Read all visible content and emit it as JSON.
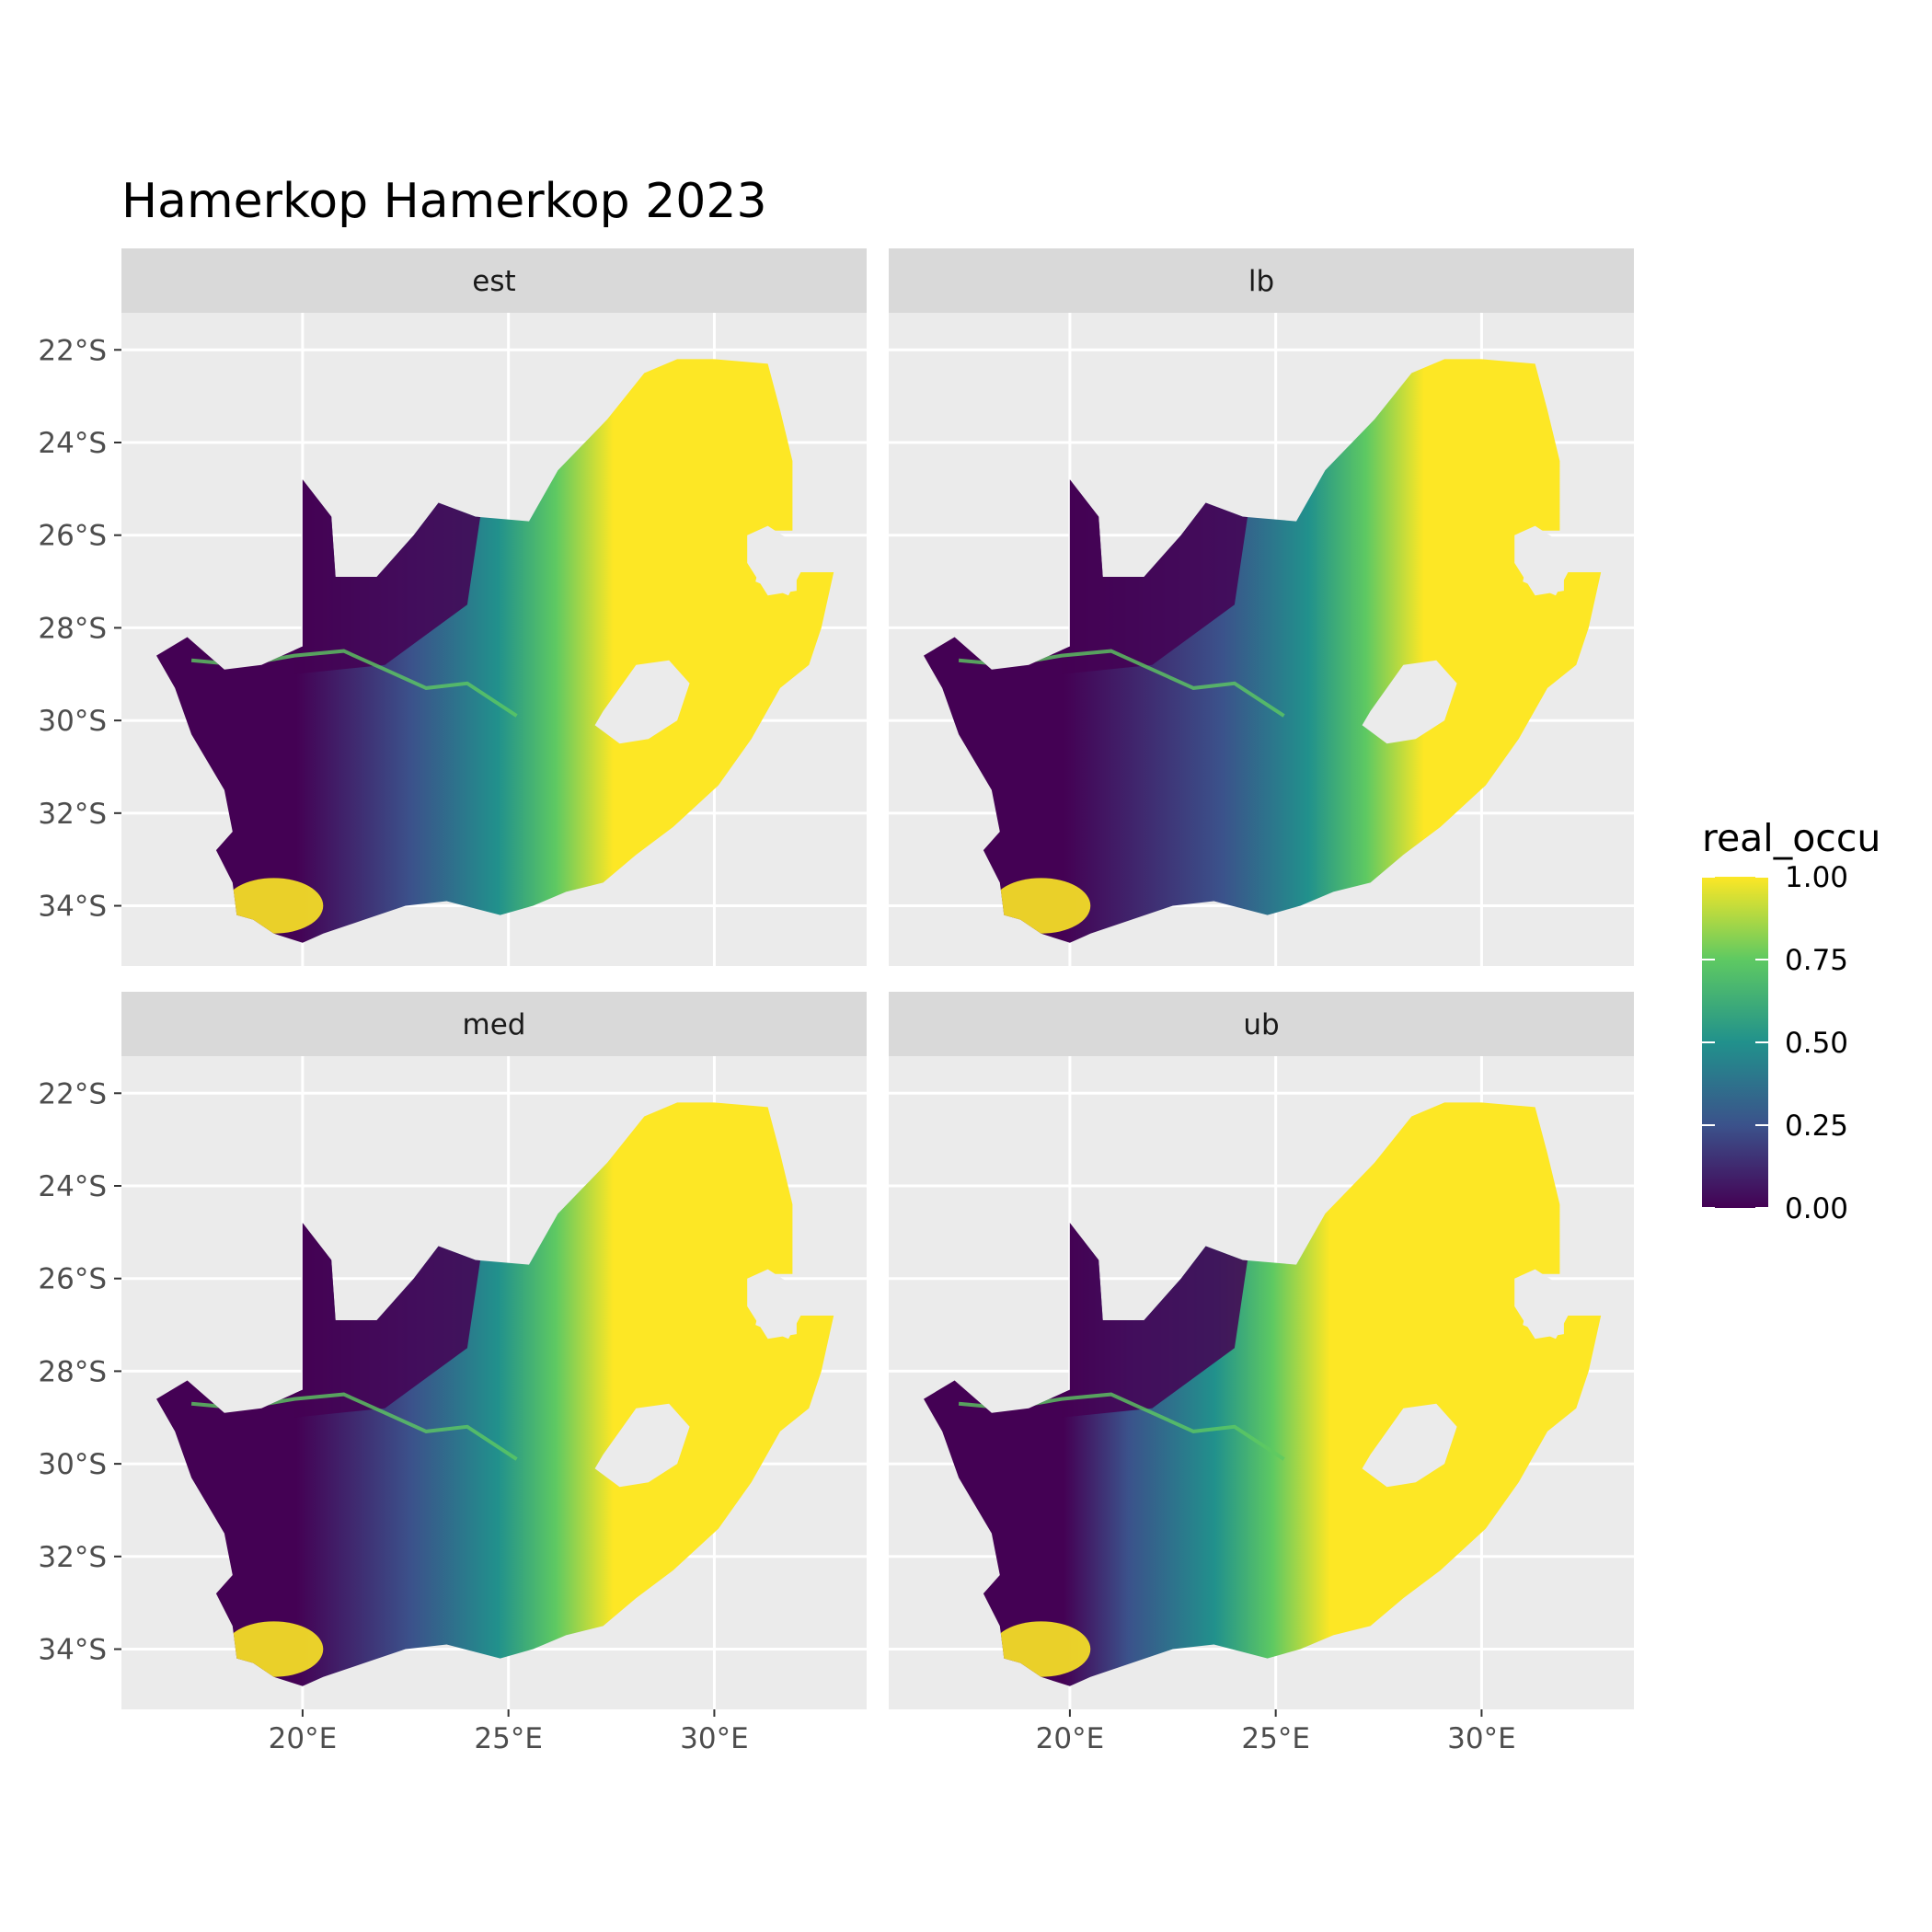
{
  "title": "Hamerkop Hamerkop 2023",
  "colors": {
    "panel_bg": "#ebebeb",
    "strip_bg": "#d9d9d9",
    "grid": "#ffffff",
    "viridis": [
      "#440154",
      "#3b528b",
      "#21918c",
      "#5ec962",
      "#fde725"
    ]
  },
  "panels": [
    {
      "label": "est"
    },
    {
      "label": "lb"
    },
    {
      "label": "med"
    },
    {
      "label": "ub"
    }
  ],
  "y_ticks": [
    "22°S",
    "24°S",
    "26°S",
    "28°S",
    "30°S",
    "32°S",
    "34°S"
  ],
  "x_ticks": [
    "20°E",
    "25°E",
    "30°E"
  ],
  "legend": {
    "title": "real_occu",
    "labels": [
      "1.00",
      "0.75",
      "0.50",
      "0.25",
      "0.00"
    ]
  },
  "chart_data": {
    "type": "heatmap",
    "title": "Hamerkop Hamerkop 2023",
    "facets": [
      "est",
      "lb",
      "med",
      "ub"
    ],
    "fill_variable": "real_occu",
    "fill_range": [
      0,
      1
    ],
    "colormap": "viridis",
    "x_ticks": [
      20,
      25,
      30
    ],
    "y_ticks": [
      -22,
      -24,
      -26,
      -28,
      -30,
      -32,
      -34
    ],
    "xlim": [
      15.6,
      33.7
    ],
    "ylim": [
      -35.3,
      -21.2
    ],
    "grid": true,
    "legend_position": "right"
  }
}
